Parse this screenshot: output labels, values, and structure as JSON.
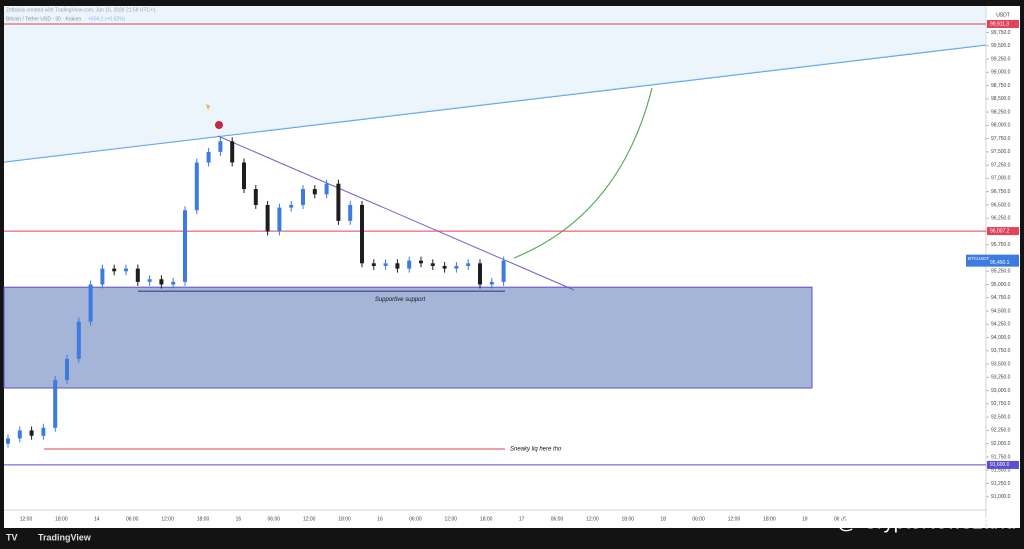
{
  "header": {
    "credit": "Zetbanis created with TradingView.com, Jan 16, 2026 21:58 UTC+1",
    "symbol": "Bitcoin / Tether USD · 30 · Kraken",
    "change": "+504.2 (+0.52%)"
  },
  "chart_data": {
    "type": "candlestick",
    "currency": "USDT",
    "closes": [
      92100,
      92250,
      92150,
      92300,
      93200,
      93600,
      94300,
      95000,
      95300,
      95250,
      95300,
      95050,
      95100,
      95000,
      95050,
      96400,
      97300,
      97500,
      97700,
      97300,
      96800,
      96500,
      96000,
      96450,
      96500,
      96800,
      96700,
      96900,
      96200,
      96500,
      95400,
      95350,
      95400,
      95300,
      95450,
      95400,
      95350,
      95300,
      95350,
      95400,
      95000,
      95050,
      95450
    ],
    "first_open": 92000,
    "up_color": "#3d7be0",
    "down_color": "#1e1e1e",
    "ylim": [
      90750,
      100250
    ],
    "yticks": [
      {
        "value": 91000,
        "label": "91,000.0"
      },
      {
        "value": 91250,
        "label": "91,250.0"
      },
      {
        "value": 91500,
        "label": "91,500.0"
      },
      {
        "value": 91750,
        "label": "91,750.0"
      },
      {
        "value": 92000,
        "label": "92,000.0"
      },
      {
        "value": 92250,
        "label": "92,250.0"
      },
      {
        "value": 92500,
        "label": "92,500.0"
      },
      {
        "value": 92750,
        "label": "92,750.0"
      },
      {
        "value": 93000,
        "label": "93,000.0"
      },
      {
        "value": 93250,
        "label": "93,250.0"
      },
      {
        "value": 93500,
        "label": "93,500.0"
      },
      {
        "value": 93750,
        "label": "93,750.0"
      },
      {
        "value": 94000,
        "label": "94,000.0"
      },
      {
        "value": 94250,
        "label": "94,250.0"
      },
      {
        "value": 94500,
        "label": "94,500.0"
      },
      {
        "value": 94750,
        "label": "94,750.0"
      },
      {
        "value": 95000,
        "label": "95,000.0"
      },
      {
        "value": 95250,
        "label": "95,250.0"
      },
      {
        "value": 95500,
        "label": "95,500.0"
      },
      {
        "value": 95750,
        "label": "95,750.0"
      },
      {
        "value": 96000,
        "label": "96,000.0"
      },
      {
        "value": 96250,
        "label": "96,250.0"
      },
      {
        "value": 96500,
        "label": "96,500.0"
      },
      {
        "value": 96750,
        "label": "96,750.0"
      },
      {
        "value": 97000,
        "label": "97,000.0"
      },
      {
        "value": 97250,
        "label": "97,250.0"
      },
      {
        "value": 97500,
        "label": "97,500.0"
      },
      {
        "value": 97750,
        "label": "97,750.0"
      },
      {
        "value": 98000,
        "label": "98,000.0"
      },
      {
        "value": 98250,
        "label": "98,250.0"
      },
      {
        "value": 98500,
        "label": "98,500.0"
      },
      {
        "value": 98750,
        "label": "98,750.0"
      },
      {
        "value": 99000,
        "label": "99,000.0"
      },
      {
        "value": 99250,
        "label": "99,250.0"
      },
      {
        "value": 99500,
        "label": "99,500.0"
      },
      {
        "value": 99750,
        "label": "99,750.0"
      }
    ],
    "time_labels": [
      "12:00",
      "18:00",
      "14",
      "06:00",
      "12:00",
      "18:00",
      "15",
      "06:00",
      "12:00",
      "18:00",
      "16",
      "06:00",
      "12:00",
      "18:00",
      "17",
      "06:00",
      "12:00",
      "18:00",
      "18",
      "06:00",
      "12:00",
      "18:00",
      "19",
      "06:00"
    ],
    "levels": [
      {
        "value": 99911.3,
        "label": "99,911.3",
        "color": "#e0435a"
      },
      {
        "value": 96007.2,
        "label": "96,007.2",
        "color": "#e0435a"
      },
      {
        "value": 91600,
        "label": "91,600.0",
        "color": "#5a4fcf"
      }
    ],
    "last_price": {
      "name": "BTCUSDT",
      "value": 95450.1,
      "label": "95,450.1"
    },
    "zone": {
      "low": 93050,
      "high": 94950,
      "label": "Supportive support"
    },
    "liq": {
      "value": 91900,
      "label": "Sneaky liq here tho"
    }
  },
  "footer": {
    "brand": "TradingView",
    "watermark": "@ CryptoNewsLand"
  }
}
